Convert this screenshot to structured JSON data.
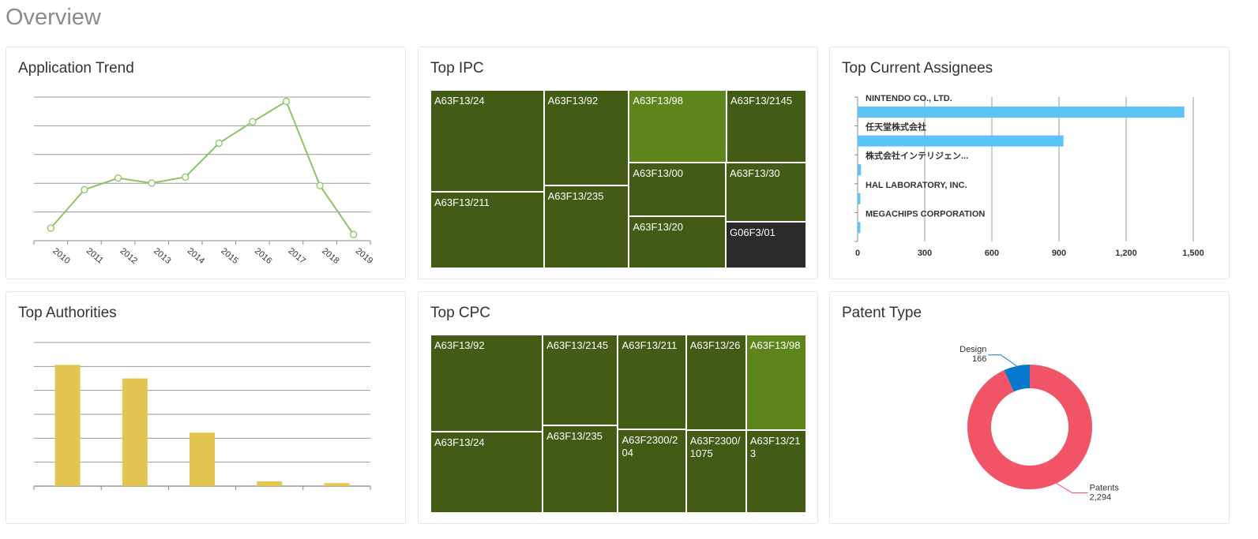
{
  "page": {
    "title": "Overview"
  },
  "colors": {
    "trend_line": "#8bc463",
    "bar_yellow": "#e3c651",
    "assignee_bar": "#5bc4f6",
    "tm_dark": "#425c16",
    "tm_light": "#5d851c",
    "tm_black": "#2b2b2b",
    "pie_patents": "#f25467",
    "pie_design": "#0878cc"
  },
  "cards": {
    "application_trend": {
      "title": "Application Trend"
    },
    "top_ipc": {
      "title": "Top IPC"
    },
    "top_assignees": {
      "title": "Top Current Assignees"
    },
    "top_authorities": {
      "title": "Top Authorities"
    },
    "top_cpc": {
      "title": "Top CPC"
    },
    "patent_type": {
      "title": "Patent Type"
    }
  },
  "chart_data": [
    {
      "id": "application_trend",
      "type": "line",
      "title": "Application Trend",
      "x": [
        "2010",
        "2011",
        "2012",
        "2013",
        "2014",
        "2015",
        "2016",
        "2017",
        "2018",
        "2019"
      ],
      "values": [
        88,
        355,
        436,
        401,
        443,
        679,
        828,
        970,
        384,
        43
      ],
      "ylim": [
        0,
        1000
      ],
      "grid": true
    },
    {
      "id": "top_ipc",
      "type": "treemap",
      "title": "Top IPC",
      "items": [
        {
          "label": "A63F13/24",
          "value": 400,
          "shade": "dark"
        },
        {
          "label": "A63F13/211",
          "value": 300,
          "shade": "dark"
        },
        {
          "label": "A63F13/92",
          "value": 280,
          "shade": "dark"
        },
        {
          "label": "A63F13/235",
          "value": 245,
          "shade": "dark"
        },
        {
          "label": "A63F13/98",
          "value": 245,
          "shade": "light"
        },
        {
          "label": "A63F13/2145",
          "value": 200,
          "shade": "dark"
        },
        {
          "label": "A63F13/00",
          "value": 180,
          "shade": "dark"
        },
        {
          "label": "A63F13/20",
          "value": 175,
          "shade": "dark"
        },
        {
          "label": "A63F13/30",
          "value": 165,
          "shade": "dark"
        },
        {
          "label": "G06F3/01",
          "value": 130,
          "shade": "black"
        }
      ]
    },
    {
      "id": "top_assignees",
      "type": "bar",
      "orientation": "horizontal",
      "title": "Top Current Assignees",
      "categories": [
        "NINTENDO CO., LTD.",
        "任天堂株式会社",
        "株式会社インテリジェン...",
        "HAL LABORATORY, INC.",
        "MEGACHIPS CORPORATION"
      ],
      "values": [
        1460,
        920,
        15,
        12,
        12
      ],
      "xticks": [
        "0",
        "300",
        "600",
        "900",
        "1,200",
        "1,500"
      ],
      "xlim": [
        0,
        1500
      ],
      "grid": true
    },
    {
      "id": "top_authorities",
      "type": "bar",
      "title": "Top Authorities",
      "categories": [
        "",
        "",
        "",
        "",
        ""
      ],
      "values": [
        1520,
        1350,
        670,
        60,
        38
      ],
      "ylim": [
        0,
        1800
      ],
      "grid": true
    },
    {
      "id": "top_cpc",
      "type": "treemap",
      "title": "Top CPC",
      "items": [
        {
          "label": "A63F13/92",
          "value": 380,
          "shade": "dark"
        },
        {
          "label": "A63F13/24",
          "value": 320,
          "shade": "dark"
        },
        {
          "label": "A63F13/2145",
          "value": 240,
          "shade": "dark"
        },
        {
          "label": "A63F13/235",
          "value": 230,
          "shade": "dark"
        },
        {
          "label": "A63F13/211",
          "value": 225,
          "shade": "dark"
        },
        {
          "label": "A63F2300/204",
          "value": 200,
          "shade": "dark"
        },
        {
          "label": "A63F13/26",
          "value": 200,
          "shade": "dark"
        },
        {
          "label": "A63F13/98",
          "value": 200,
          "shade": "light"
        },
        {
          "label": "A63F2300/1075",
          "value": 175,
          "shade": "dark"
        },
        {
          "label": "A63F13/213",
          "value": 175,
          "shade": "dark"
        }
      ]
    },
    {
      "id": "patent_type",
      "type": "pie",
      "title": "Patent Type",
      "slices": [
        {
          "name": "Patents",
          "value": 2294,
          "value_label": "2,294"
        },
        {
          "name": "Design",
          "value": 166,
          "value_label": "166"
        }
      ]
    }
  ]
}
